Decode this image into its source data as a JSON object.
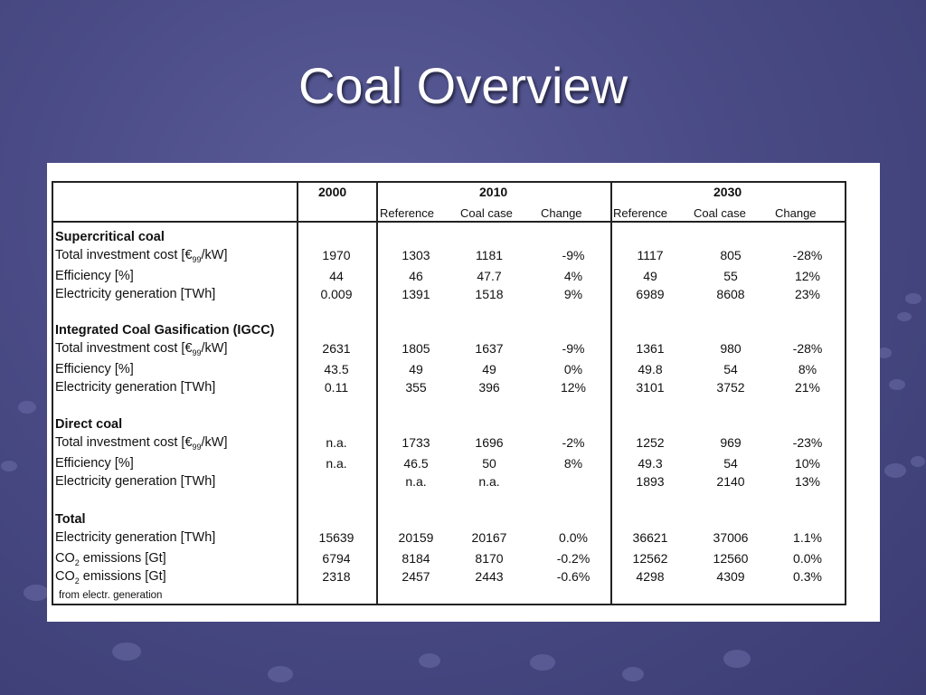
{
  "slide": {
    "title": "Coal Overview"
  },
  "table": {
    "years": [
      "2000",
      "2010",
      "2030"
    ],
    "subheaders": [
      "Reference",
      "Coal case",
      "Change",
      "Reference",
      "Coal case",
      "Change"
    ],
    "sections": [
      {
        "heading": "Supercritical coal",
        "rows": [
          {
            "label_pre": "Total investment cost [€",
            "label_sub": "99",
            "label_post": "/kW]",
            "values": [
              "1970",
              "1303",
              "1181",
              "-9%",
              "1117",
              "805",
              "-28%"
            ]
          },
          {
            "label": "Efficiency [%]",
            "values": [
              "44",
              "46",
              "47.7",
              "4%",
              "49",
              "55",
              "12%"
            ]
          },
          {
            "label": "Electricity generation [TWh]",
            "values": [
              "0.009",
              "1391",
              "1518",
              "9%",
              "6989",
              "8608",
              "23%"
            ]
          }
        ]
      },
      {
        "heading": "Integrated Coal Gasification (IGCC)",
        "rows": [
          {
            "label_pre": "Total investment cost [€",
            "label_sub": "99",
            "label_post": "/kW]",
            "values": [
              "2631",
              "1805",
              "1637",
              "-9%",
              "1361",
              "980",
              "-28%"
            ]
          },
          {
            "label": "Efficiency [%]",
            "values": [
              "43.5",
              "49",
              "49",
              "0%",
              "49.8",
              "54",
              "8%"
            ]
          },
          {
            "label": "Electricity generation [TWh]",
            "values": [
              "0.11",
              "355",
              "396",
              "12%",
              "3101",
              "3752",
              "21%"
            ]
          }
        ]
      },
      {
        "heading": "Direct coal",
        "rows": [
          {
            "label_pre": "Total investment cost [€",
            "label_sub": "99",
            "label_post": "/kW]",
            "values": [
              "n.a.",
              "1733",
              "1696",
              "-2%",
              "1252",
              "969",
              "-23%"
            ]
          },
          {
            "label": "Efficiency [%]",
            "values": [
              "n.a.",
              "46.5",
              "50",
              "8%",
              "49.3",
              "54",
              "10%"
            ]
          },
          {
            "label": "Electricity generation [TWh]",
            "values": [
              "",
              "n.a.",
              "n.a.",
              "",
              "1893",
              "2140",
              "13%"
            ]
          }
        ]
      },
      {
        "heading": "Total",
        "rows": [
          {
            "label": "Electricity generation [TWh]",
            "values": [
              "15639",
              "20159",
              "20167",
              "0.0%",
              "36621",
              "37006",
              "1.1%"
            ]
          },
          {
            "label_pre": "CO",
            "label_sub": "2",
            "label_post": " emissions [Gt]",
            "values": [
              "6794",
              "8184",
              "8170",
              "-0.2%",
              "12562",
              "12560",
              "0.0%"
            ]
          },
          {
            "label_pre": "CO",
            "label_sub": "2",
            "label_post": " emissions [Gt]",
            "values": [
              "2318",
              "2457",
              "2443",
              "-0.6%",
              "4298",
              "4309",
              "0.3%"
            ]
          }
        ]
      }
    ],
    "footnote": "from electr. generation"
  }
}
